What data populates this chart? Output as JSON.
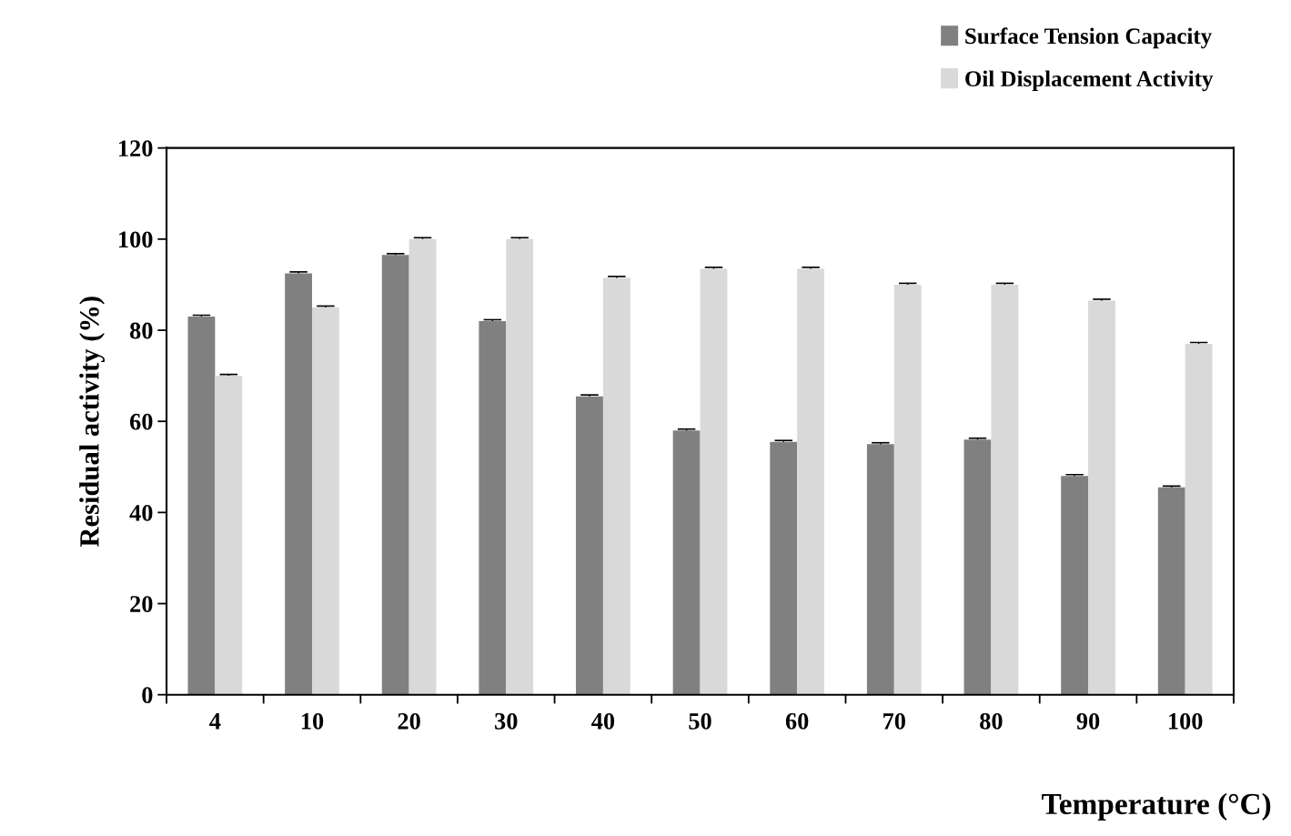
{
  "chart_data": {
    "type": "bar",
    "xlabel": "Temperature (°C)",
    "ylabel": "Residual activity (%)",
    "categories": [
      "4",
      "10",
      "20",
      "30",
      "40",
      "50",
      "60",
      "70",
      "80",
      "90",
      "100"
    ],
    "series": [
      {
        "name": "Surface Tension Capacity",
        "color": "#808080",
        "values": [
          83,
          92.5,
          96.5,
          82,
          65.5,
          58,
          55.5,
          55,
          56,
          48,
          45.5
        ],
        "errors": [
          0.3,
          0.3,
          0.3,
          0.3,
          0.3,
          0.3,
          0.3,
          0.3,
          0.3,
          0.3,
          0.3
        ]
      },
      {
        "name": "Oil Displacement Activity",
        "color": "#d9d9d9",
        "values": [
          70,
          85,
          100,
          100,
          91.5,
          93.5,
          93.5,
          90,
          90,
          86.5,
          77
        ],
        "errors": [
          0.3,
          0.3,
          0.3,
          0.3,
          0.3,
          0.3,
          0.3,
          0.3,
          0.3,
          0.3,
          0.3
        ]
      }
    ],
    "ylim": [
      0,
      120
    ],
    "yticks": [
      0,
      20,
      40,
      60,
      80,
      100,
      120
    ],
    "grid": false,
    "legend": "top right"
  }
}
